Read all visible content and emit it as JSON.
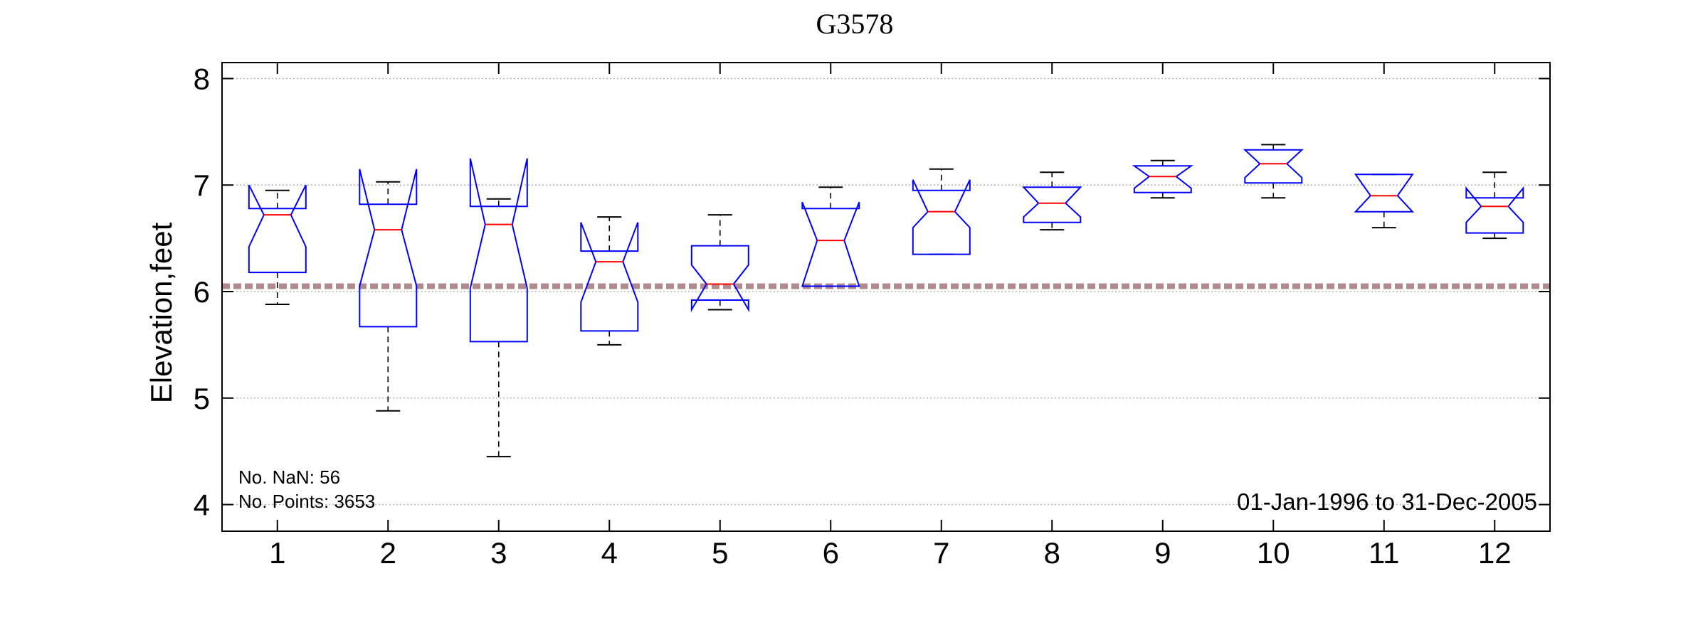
{
  "chart_data": {
    "type": "box",
    "title": "G3578",
    "xlabel": "",
    "ylabel": "Elevation,feet",
    "categories": [
      "1",
      "2",
      "3",
      "4",
      "5",
      "6",
      "7",
      "8",
      "9",
      "10",
      "11",
      "12"
    ],
    "ylim": [
      3.75,
      8.15
    ],
    "yticks": [
      4,
      5,
      6,
      7,
      8
    ],
    "grid": "horizontal dotted",
    "reference_line": 6.05,
    "boxes": [
      {
        "label": "1",
        "whisker_low": 5.88,
        "q1": 6.18,
        "median": 6.72,
        "q3": 6.78,
        "whisker_high": 6.95,
        "notch_low": 6.42,
        "notch_high": 7.0
      },
      {
        "label": "2",
        "whisker_low": 4.88,
        "q1": 5.67,
        "median": 6.58,
        "q3": 6.82,
        "whisker_high": 7.03,
        "notch_low": 6.05,
        "notch_high": 7.15
      },
      {
        "label": "3",
        "whisker_low": 4.45,
        "q1": 5.53,
        "median": 6.63,
        "q3": 6.8,
        "whisker_high": 6.87,
        "notch_low": 6.03,
        "notch_high": 7.25
      },
      {
        "label": "4",
        "whisker_low": 5.5,
        "q1": 5.63,
        "median": 6.28,
        "q3": 6.38,
        "whisker_high": 6.7,
        "notch_low": 5.9,
        "notch_high": 6.65
      },
      {
        "label": "5",
        "whisker_low": 5.83,
        "q1": 5.92,
        "median": 6.07,
        "q3": 6.43,
        "whisker_high": 6.72,
        "notch_low": 5.83,
        "notch_high": 6.25
      },
      {
        "label": "6",
        "whisker_low": 6.05,
        "q1": 6.05,
        "median": 6.48,
        "q3": 6.78,
        "whisker_high": 6.98,
        "notch_low": 6.05,
        "notch_high": 6.84
      },
      {
        "label": "7",
        "whisker_low": 6.35,
        "q1": 6.35,
        "median": 6.75,
        "q3": 6.95,
        "whisker_high": 7.15,
        "notch_low": 6.6,
        "notch_high": 7.05
      },
      {
        "label": "8",
        "whisker_low": 6.58,
        "q1": 6.65,
        "median": 6.83,
        "q3": 6.98,
        "whisker_high": 7.12,
        "notch_low": 6.7,
        "notch_high": 6.98
      },
      {
        "label": "9",
        "whisker_low": 6.88,
        "q1": 6.93,
        "median": 7.08,
        "q3": 7.18,
        "whisker_high": 7.23,
        "notch_low": 6.97,
        "notch_high": 7.18
      },
      {
        "label": "10",
        "whisker_low": 6.88,
        "q1": 7.02,
        "median": 7.2,
        "q3": 7.33,
        "whisker_high": 7.38,
        "notch_low": 7.07,
        "notch_high": 7.33
      },
      {
        "label": "11",
        "whisker_low": 6.6,
        "q1": 6.75,
        "median": 6.9,
        "q3": 7.1,
        "whisker_high": 7.1,
        "notch_low": 6.75,
        "notch_high": 7.1
      },
      {
        "label": "12",
        "whisker_low": 6.5,
        "q1": 6.55,
        "median": 6.8,
        "q3": 6.88,
        "whisker_high": 7.12,
        "notch_low": 6.65,
        "notch_high": 6.97
      }
    ],
    "annotations": {
      "nan": "No. NaN: 56",
      "points": "No. Points: 3653",
      "range": "01-Jan-1996 to 31-Dec-2005"
    },
    "colors": {
      "box": "#0000ff",
      "median": "#ff0000",
      "whisker": "#000000",
      "reference": "#b08c8c",
      "grid": "#b4b4b4"
    }
  }
}
